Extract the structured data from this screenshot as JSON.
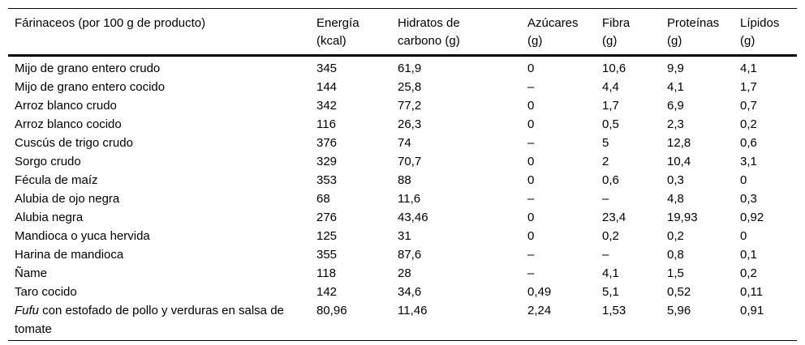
{
  "table": {
    "columns": [
      {
        "label": "Fárinaceos (por 100 g de producto)"
      },
      {
        "label": "Energía\n(kcal)"
      },
      {
        "label": "Hidratos de\ncarbono (g)"
      },
      {
        "label": "Azúcares\n(g)"
      },
      {
        "label": "Fibra\n(g)"
      },
      {
        "label": "Proteínas\n(g)"
      },
      {
        "label": "Lípidos\n(g)"
      }
    ],
    "rows": [
      {
        "name": "Mijo de grano entero crudo",
        "values": [
          "345",
          "61,9",
          "0",
          "10,6",
          "9,9",
          "4,1"
        ]
      },
      {
        "name": "Mijo de grano entero cocido",
        "values": [
          "144",
          "25,8",
          "–",
          "4,4",
          "4,1",
          "1,7"
        ]
      },
      {
        "name": "Arroz blanco crudo",
        "values": [
          "342",
          "77,2",
          "0",
          "1,7",
          "6,9",
          "0,7"
        ]
      },
      {
        "name": "Arroz blanco cocido",
        "values": [
          "116",
          "26,3",
          "0",
          "0,5",
          "2,3",
          "0,2"
        ]
      },
      {
        "name": "Cuscús de trigo crudo",
        "values": [
          "376",
          "74",
          "–",
          "5",
          "12,8",
          "0,6"
        ]
      },
      {
        "name": "Sorgo crudo",
        "values": [
          "329",
          "70,7",
          "0",
          "2",
          "10,4",
          "3,1"
        ]
      },
      {
        "name": "Fécula de maíz",
        "values": [
          "353",
          "88",
          "0",
          "0,6",
          "0,3",
          "0"
        ]
      },
      {
        "name": "Alubia de ojo negra",
        "values": [
          "68",
          "11,6",
          "–",
          "–",
          "4,8",
          "0,3"
        ]
      },
      {
        "name": "Alubia negra",
        "values": [
          "276",
          "43,46",
          "0",
          "23,4",
          "19,93",
          "0,92"
        ]
      },
      {
        "name": "Mandioca o yuca hervida",
        "values": [
          "125",
          "31",
          "0",
          "0,2",
          "0,2",
          "0"
        ]
      },
      {
        "name": "Harina de mandioca",
        "values": [
          "355",
          "87,6",
          "–",
          "–",
          "0,8",
          "0,1"
        ]
      },
      {
        "name": "Ñame",
        "values": [
          "118",
          "28",
          "–",
          "4,1",
          "1,5",
          "0,2"
        ]
      },
      {
        "name": "Taro cocido",
        "values": [
          "142",
          "34,6",
          "0,49",
          "5,1",
          "0,52",
          "0,11"
        ]
      },
      {
        "name_italic": "Fufu",
        "name": " con estofado de pollo y verduras en salsa de tomate",
        "values": [
          "80,96",
          "11,46",
          "2,24",
          "1,53",
          "5,96",
          "0,91"
        ]
      }
    ]
  }
}
